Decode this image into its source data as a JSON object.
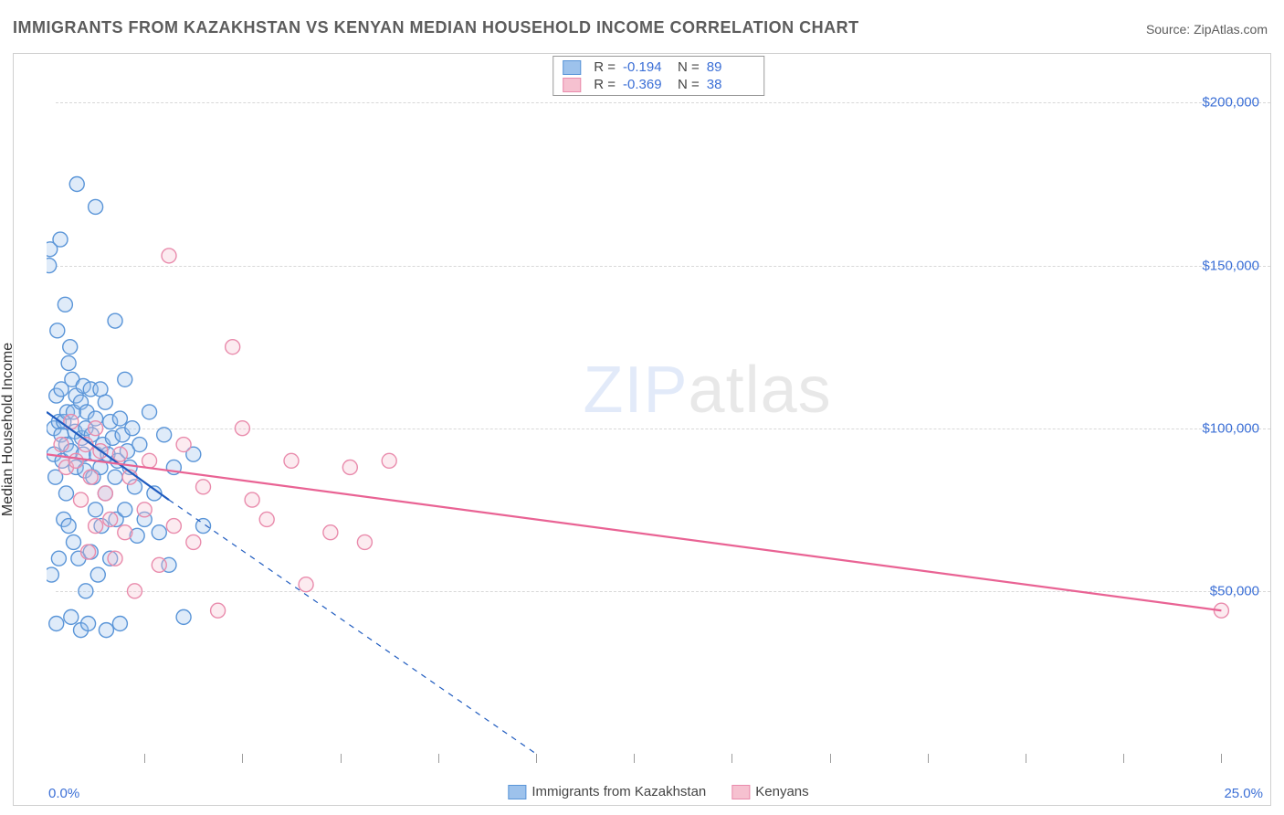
{
  "title": "IMMIGRANTS FROM KAZAKHSTAN VS KENYAN MEDIAN HOUSEHOLD INCOME CORRELATION CHART",
  "source_label": "Source: ZipAtlas.com",
  "watermark_zip": "ZIP",
  "watermark_atlas": "atlas",
  "chart": {
    "type": "scatter",
    "background_color": "#ffffff",
    "border_color": "#cfcfcf",
    "grid_color": "#d8d8d8",
    "tick_font_color": "#3b6fd6",
    "axis_font_color": "#333333",
    "title_font_color": "#5c5c5c",
    "title_fontsize": 18,
    "tick_fontsize": 15,
    "label_fontsize": 16,
    "y_label": "Median Household Income",
    "x_min": 0.0,
    "x_max": 25.0,
    "x_min_label": "0.0%",
    "x_max_label": "25.0%",
    "x_tick_positions_pct": [
      2,
      4,
      6,
      8,
      10,
      12,
      14,
      16,
      18,
      20,
      22,
      24
    ],
    "y_min": 0,
    "y_max": 215000,
    "y_ticks": [
      50000,
      100000,
      150000,
      200000
    ],
    "y_tick_labels": [
      "$50,000",
      "$100,000",
      "$150,000",
      "$200,000"
    ],
    "marker_radius": 8,
    "marker_stroke_width": 1.4,
    "marker_fill_opacity": 0.32,
    "line_width": 2.2,
    "dash_pattern": "6,6",
    "series": [
      {
        "key": "kazakhstan",
        "label": "Immigrants from Kazakhstan",
        "color_fill": "#9dc2ec",
        "color_stroke": "#5a95d8",
        "line_color": "#1f5bbf",
        "R": "-0.194",
        "N": "89",
        "trend": {
          "x1": 0.0,
          "y1": 105000,
          "x2": 2.5,
          "y2": 78000
        },
        "trend_ext": {
          "x1": 2.5,
          "y1": 78000,
          "x2": 10.0,
          "y2": 0
        },
        "points": [
          [
            0.05,
            150000
          ],
          [
            0.07,
            155000
          ],
          [
            0.1,
            55000
          ],
          [
            0.15,
            100000
          ],
          [
            0.15,
            92000
          ],
          [
            0.18,
            85000
          ],
          [
            0.2,
            40000
          ],
          [
            0.2,
            110000
          ],
          [
            0.22,
            130000
          ],
          [
            0.25,
            102000
          ],
          [
            0.25,
            60000
          ],
          [
            0.28,
            158000
          ],
          [
            0.3,
            112000
          ],
          [
            0.3,
            98000
          ],
          [
            0.32,
            90000
          ],
          [
            0.35,
            102000
          ],
          [
            0.35,
            72000
          ],
          [
            0.38,
            138000
          ],
          [
            0.4,
            95000
          ],
          [
            0.4,
            80000
          ],
          [
            0.42,
            105000
          ],
          [
            0.45,
            120000
          ],
          [
            0.45,
            70000
          ],
          [
            0.48,
            125000
          ],
          [
            0.5,
            93000
          ],
          [
            0.5,
            42000
          ],
          [
            0.52,
            115000
          ],
          [
            0.55,
            105000
          ],
          [
            0.55,
            65000
          ],
          [
            0.58,
            99000
          ],
          [
            0.6,
            88000
          ],
          [
            0.6,
            110000
          ],
          [
            0.62,
            175000
          ],
          [
            0.65,
            60000
          ],
          [
            0.7,
            108000
          ],
          [
            0.7,
            38000
          ],
          [
            0.72,
            97000
          ],
          [
            0.75,
            92000
          ],
          [
            0.75,
            113000
          ],
          [
            0.78,
            87000
          ],
          [
            0.8,
            100000
          ],
          [
            0.8,
            50000
          ],
          [
            0.82,
            105000
          ],
          [
            0.85,
            40000
          ],
          [
            0.9,
            112000
          ],
          [
            0.9,
            62000
          ],
          [
            0.92,
            98000
          ],
          [
            0.95,
            85000
          ],
          [
            1.0,
            103000
          ],
          [
            1.0,
            75000
          ],
          [
            1.0,
            168000
          ],
          [
            1.02,
            92000
          ],
          [
            1.05,
            55000
          ],
          [
            1.1,
            112000
          ],
          [
            1.1,
            88000
          ],
          [
            1.12,
            70000
          ],
          [
            1.15,
            95000
          ],
          [
            1.2,
            108000
          ],
          [
            1.2,
            80000
          ],
          [
            1.22,
            38000
          ],
          [
            1.25,
            92000
          ],
          [
            1.3,
            102000
          ],
          [
            1.3,
            60000
          ],
          [
            1.35,
            97000
          ],
          [
            1.4,
            133000
          ],
          [
            1.4,
            85000
          ],
          [
            1.42,
            72000
          ],
          [
            1.45,
            90000
          ],
          [
            1.5,
            40000
          ],
          [
            1.5,
            103000
          ],
          [
            1.55,
            98000
          ],
          [
            1.6,
            115000
          ],
          [
            1.6,
            75000
          ],
          [
            1.65,
            93000
          ],
          [
            1.7,
            88000
          ],
          [
            1.75,
            100000
          ],
          [
            1.8,
            82000
          ],
          [
            1.85,
            67000
          ],
          [
            1.9,
            95000
          ],
          [
            2.0,
            72000
          ],
          [
            2.1,
            105000
          ],
          [
            2.2,
            80000
          ],
          [
            2.3,
            68000
          ],
          [
            2.4,
            98000
          ],
          [
            2.5,
            58000
          ],
          [
            2.6,
            88000
          ],
          [
            2.8,
            42000
          ],
          [
            3.0,
            92000
          ],
          [
            3.2,
            70000
          ]
        ]
      },
      {
        "key": "kenyans",
        "label": "Kenyans",
        "color_fill": "#f6c1d0",
        "color_stroke": "#e98bac",
        "line_color": "#e96394",
        "R": "-0.369",
        "N": "38",
        "trend": {
          "x1": 0.0,
          "y1": 92000,
          "x2": 24.0,
          "y2": 44000
        },
        "points": [
          [
            0.3,
            95000
          ],
          [
            0.4,
            88000
          ],
          [
            0.5,
            102000
          ],
          [
            0.6,
            90000
          ],
          [
            0.7,
            78000
          ],
          [
            0.8,
            95000
          ],
          [
            0.85,
            62000
          ],
          [
            0.9,
            85000
          ],
          [
            1.0,
            100000
          ],
          [
            1.0,
            70000
          ],
          [
            1.1,
            93000
          ],
          [
            1.2,
            80000
          ],
          [
            1.3,
            72000
          ],
          [
            1.4,
            60000
          ],
          [
            1.5,
            92000
          ],
          [
            1.6,
            68000
          ],
          [
            1.7,
            85000
          ],
          [
            1.8,
            50000
          ],
          [
            2.0,
            75000
          ],
          [
            2.1,
            90000
          ],
          [
            2.3,
            58000
          ],
          [
            2.5,
            153000
          ],
          [
            2.6,
            70000
          ],
          [
            2.8,
            95000
          ],
          [
            3.0,
            65000
          ],
          [
            3.2,
            82000
          ],
          [
            3.5,
            44000
          ],
          [
            3.8,
            125000
          ],
          [
            4.0,
            100000
          ],
          [
            4.2,
            78000
          ],
          [
            4.5,
            72000
          ],
          [
            5.0,
            90000
          ],
          [
            5.3,
            52000
          ],
          [
            5.8,
            68000
          ],
          [
            6.2,
            88000
          ],
          [
            6.5,
            65000
          ],
          [
            7.0,
            90000
          ],
          [
            24.0,
            44000
          ]
        ]
      }
    ]
  },
  "legend_top": {
    "r_label": "R  =",
    "n_label": "N  ="
  },
  "legend_bottom": {}
}
